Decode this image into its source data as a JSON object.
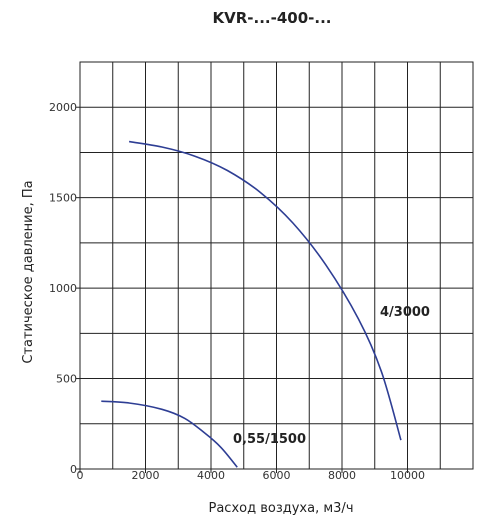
{
  "chart_data": {
    "type": "line",
    "title": "KVR-...-400-...",
    "xlabel": "Расход воздуха, м3/ч",
    "ylabel": "Статическое давление, Па",
    "xlim": [
      0,
      12000
    ],
    "ylim": [
      0,
      2250
    ],
    "x_major_ticks": [
      0,
      2000,
      4000,
      6000,
      8000,
      10000
    ],
    "y_major_ticks": [
      0,
      500,
      1000,
      1500,
      2000
    ],
    "x_grid_step": 1000,
    "y_grid_step": 250,
    "grid": true,
    "legend": "none",
    "series_color": "#2e3e94",
    "series": [
      {
        "name": "4/3000",
        "x": [
          1500,
          2500,
          3500,
          4500,
          5500,
          6500,
          7500,
          8500,
          9200,
          9800
        ],
        "y": [
          1810,
          1780,
          1730,
          1650,
          1530,
          1360,
          1130,
          830,
          540,
          160
        ]
      },
      {
        "name": "0,55/1500",
        "x": [
          650,
          1500,
          2500,
          3200,
          3800,
          4300,
          4800
        ],
        "y": [
          375,
          365,
          330,
          280,
          200,
          120,
          10
        ]
      }
    ]
  }
}
